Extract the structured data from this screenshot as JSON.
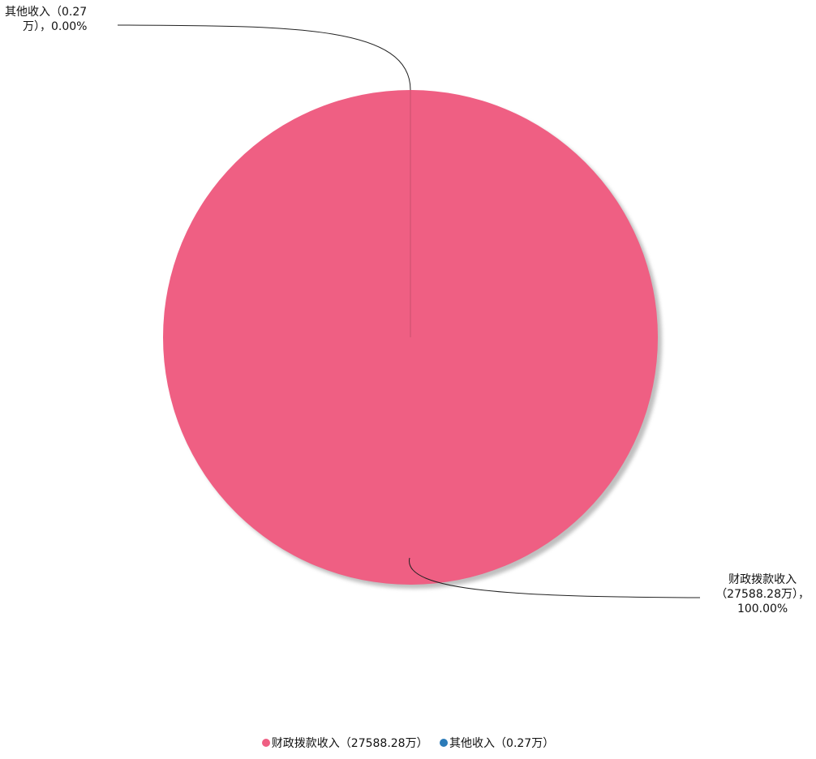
{
  "chart_data": {
    "type": "pie",
    "slices": [
      {
        "name": "财政拨款收入",
        "value": 27588.28,
        "percent": 100.0,
        "color": "#ef5f83",
        "label_lines": [
          "财政拨款收入",
          "（27588.28万），",
          "100.00%"
        ],
        "legend_label": "财政拨款收入（27588.28万）"
      },
      {
        "name": "其他收入",
        "value": 0.27,
        "percent": 0.0,
        "color": "#2b7bb8",
        "label_lines": [
          "其他收入（0.27",
          "万），0.00%"
        ],
        "legend_label": "其他收入（0.27万）"
      }
    ]
  }
}
